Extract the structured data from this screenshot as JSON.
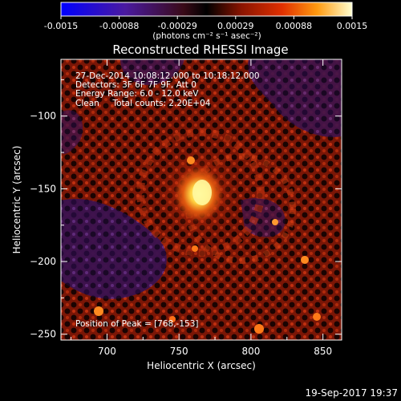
{
  "colorbar": {
    "tick_labels": [
      "-0.0015",
      "-0.00088",
      "-0.00029",
      "0.00029",
      "0.00088",
      "0.0015"
    ],
    "units": "(photons cm⁻² s⁻¹ asec⁻²)"
  },
  "title": "Reconstructed RHESSI Image",
  "info": {
    "time": "27-Dec-2014 10:08:12.000 to 10:18:12.000",
    "detectors": "Detectors: 3F 6F 7F 9F, Att 0",
    "energy": "Energy Range: 6.0 - 12.0 keV",
    "clean": "Clean     Total counts: 2.20E+04"
  },
  "peak": "Position of Peak = [768,-153]",
  "x_axis": {
    "label": "Heliocentric X (arcsec)",
    "ticks": [
      {
        "value": 700,
        "label": "700"
      },
      {
        "value": 750,
        "label": "750"
      },
      {
        "value": 800,
        "label": "800"
      },
      {
        "value": 850,
        "label": "850"
      }
    ],
    "range": [
      668,
      863
    ]
  },
  "y_axis": {
    "label": "Heliocentric Y (arcsec)",
    "ticks": [
      {
        "value": -100,
        "label": "−100"
      },
      {
        "value": -150,
        "label": "−150"
      },
      {
        "value": -200,
        "label": "−200"
      },
      {
        "value": -250,
        "label": "−250"
      }
    ],
    "range": [
      -254,
      -61
    ]
  },
  "timestamp": "19-Sep-2017 19:37",
  "colors": {
    "background": "#000000",
    "image_base": "#6a1206",
    "purple_region": "#3a1050",
    "source_core": "#ffe060"
  }
}
